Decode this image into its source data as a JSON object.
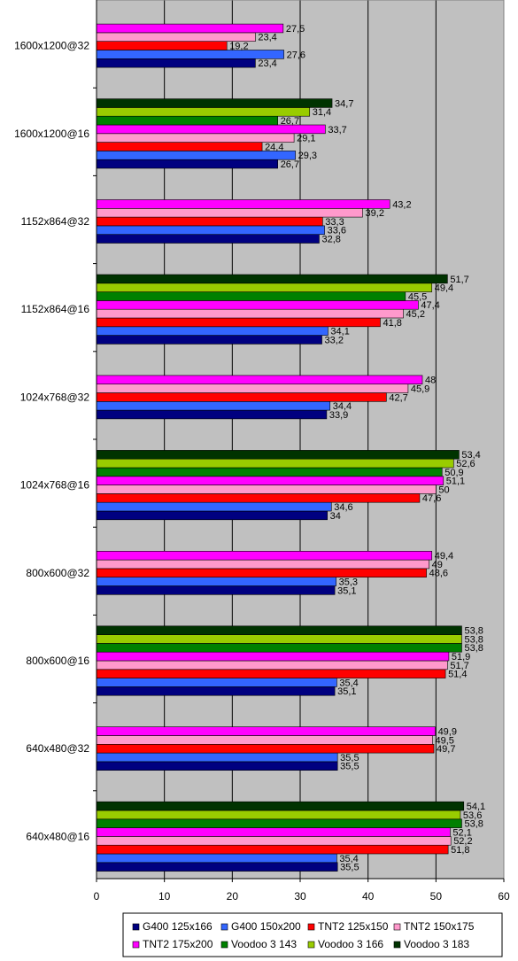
{
  "chart_data": {
    "type": "bar",
    "orientation": "horizontal",
    "title": "",
    "xlabel": "",
    "ylabel": "",
    "xlim": [
      0,
      60
    ],
    "x_ticks": [
      0,
      10,
      20,
      30,
      40,
      50,
      60
    ],
    "grid": true,
    "legend_position": "bottom",
    "categories": [
      "1600x1200@32",
      "1600x1200@16",
      "1152x864@32",
      "1152x864@16",
      "1024x768@32",
      "1024x768@16",
      "800x600@32",
      "800x600@16",
      "640x480@32",
      "640x480@16"
    ],
    "series": [
      {
        "name": "G400 125x166",
        "color": "#000080",
        "values": [
          23.4,
          26.7,
          32.8,
          33.2,
          33.9,
          34,
          35.1,
          35.1,
          35.5,
          35.5
        ],
        "labels": [
          "23,4",
          "26,7",
          "32,8",
          "33,2",
          "33,9",
          "34",
          "35,1",
          "35,1",
          "35,5",
          "35,5"
        ]
      },
      {
        "name": "G400 150x200",
        "color": "#3366ff",
        "values": [
          27.6,
          29.3,
          33.6,
          34.1,
          34.4,
          34.6,
          35.3,
          35.4,
          35.5,
          35.4
        ],
        "labels": [
          "27,6",
          "29,3",
          "33,6",
          "34,1",
          "34,4",
          "34,6",
          "35,3",
          "35,4",
          "35,5",
          "35,4"
        ]
      },
      {
        "name": "TNT2 125x150",
        "color": "#ff0000",
        "values": [
          19.2,
          24.4,
          33.3,
          41.8,
          42.7,
          47.6,
          48.6,
          51.4,
          49.7,
          51.8
        ],
        "labels": [
          "19,2",
          "24,4",
          "33,3",
          "41,8",
          "42,7",
          "47,6",
          "48,6",
          "51,4",
          "49,7",
          "51,8"
        ]
      },
      {
        "name": "TNT2 150x175",
        "color": "#ff99cc",
        "values": [
          23.4,
          29.1,
          39.2,
          45.2,
          45.9,
          50,
          49,
          51.7,
          49.5,
          52.2
        ],
        "labels": [
          "23,4",
          "29,1",
          "39,2",
          "45,2",
          "45,9",
          "50",
          "49",
          "51,7",
          "49,5",
          "52,2"
        ]
      },
      {
        "name": "TNT2 175x200",
        "color": "#ff00ff",
        "values": [
          27.5,
          33.7,
          43.2,
          47.4,
          48,
          51.1,
          49.4,
          51.9,
          49.9,
          52.1
        ],
        "labels": [
          "27,5",
          "33,7",
          "43,2",
          "47,4",
          "48",
          "51,1",
          "49,4",
          "51,9",
          "49,9",
          "52,1"
        ]
      },
      {
        "name": "Voodoo 3 143",
        "color": "#008000",
        "values": [
          null,
          26.7,
          null,
          45.5,
          null,
          50.9,
          null,
          53.8,
          null,
          53.8
        ],
        "labels": [
          "",
          "26,7",
          "",
          "45,5",
          "",
          "50,9",
          "",
          "53,8",
          "",
          "53,8"
        ]
      },
      {
        "name": "Voodoo 3 166",
        "color": "#99cc00",
        "values": [
          null,
          31.4,
          null,
          49.4,
          null,
          52.6,
          null,
          53.8,
          null,
          53.6
        ],
        "labels": [
          "",
          "31,4",
          "",
          "49,4",
          "",
          "52,6",
          "",
          "53,8",
          "",
          "53,6"
        ]
      },
      {
        "name": "Voodoo 3 183",
        "color": "#003300",
        "values": [
          null,
          34.7,
          null,
          51.7,
          null,
          53.4,
          null,
          53.8,
          null,
          54.1
        ],
        "labels": [
          "",
          "34,7",
          "",
          "51,7",
          "",
          "53,4",
          "",
          "53,8",
          "",
          "54,1"
        ]
      }
    ]
  }
}
